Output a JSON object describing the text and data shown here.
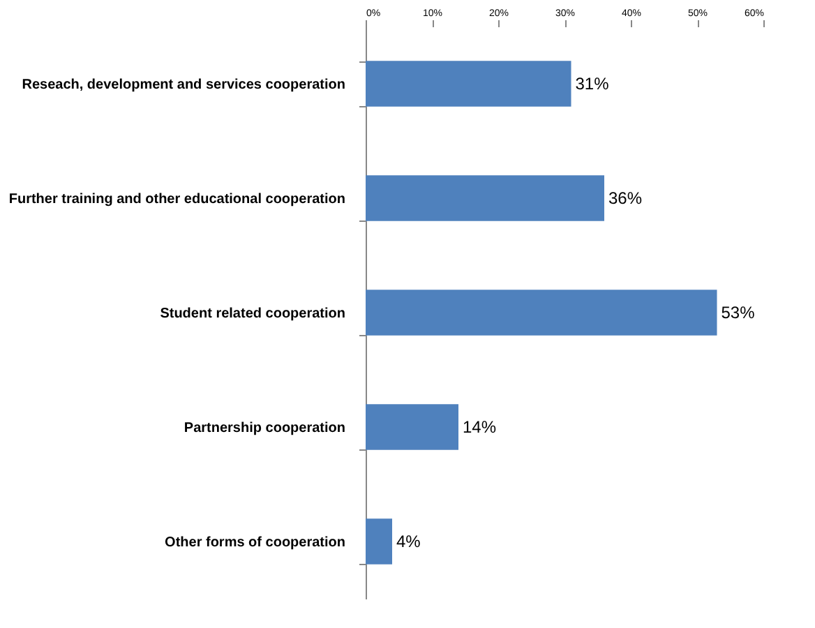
{
  "chart_data": {
    "type": "bar",
    "orientation": "horizontal",
    "categories": [
      "Reseach, development and services cooperation",
      "Further training and other educational cooperation",
      "Student related cooperation",
      "Partnership cooperation",
      "Other forms of cooperation"
    ],
    "values": [
      31,
      36,
      53,
      14,
      4
    ],
    "value_labels": [
      "31%",
      "36%",
      "53%",
      "14%",
      "4%"
    ],
    "color": "#4f81bd",
    "xlim": [
      0,
      60
    ],
    "xticks": [
      {
        "value": 0,
        "label": "0%"
      },
      {
        "value": 10,
        "label": "10%"
      },
      {
        "value": 20,
        "label": "20%"
      },
      {
        "value": 30,
        "label": "30%"
      },
      {
        "value": 40,
        "label": "40%"
      },
      {
        "value": 50,
        "label": "50%"
      },
      {
        "value": 60,
        "label": "60%"
      }
    ],
    "grid": false
  }
}
